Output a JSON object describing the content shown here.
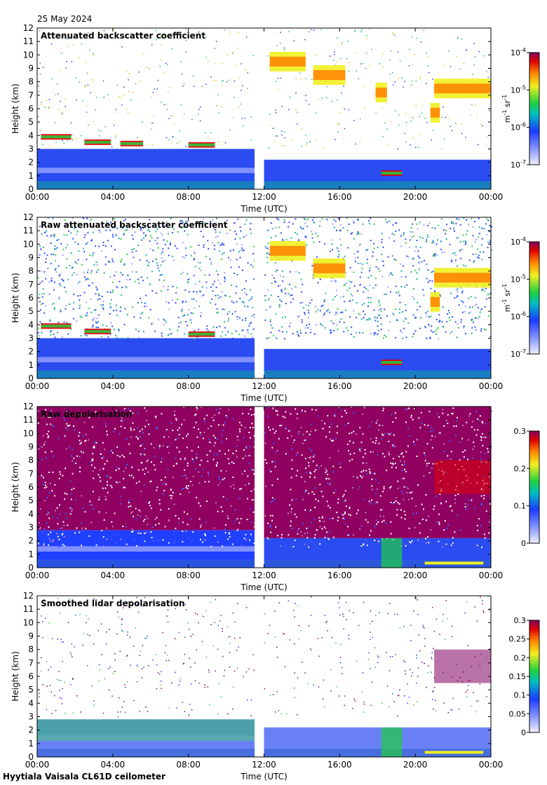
{
  "header": {
    "date": "25 May 2024",
    "instrument": "Hyytiala Vaisala CL61D ceilometer"
  },
  "chart_data": [
    {
      "type": "heatmap",
      "title": "Attenuated backscatter coefficient",
      "xlabel": "Time (UTC)",
      "ylabel": "Height (km)",
      "xticks": [
        "00:00",
        "04:00",
        "08:00",
        "12:00",
        "16:00",
        "20:00",
        "00:00"
      ],
      "xlim": [
        0,
        24
      ],
      "ylim": [
        0,
        12
      ],
      "yticks": [
        "0",
        "1",
        "2",
        "3",
        "4",
        "5",
        "6",
        "7",
        "8",
        "9",
        "10",
        "11",
        "12"
      ],
      "data_gap_hours": [
        11.5,
        12.0
      ],
      "colorbar": {
        "scale": "log",
        "ticks": [
          {
            "base": "10",
            "exp": "-4"
          },
          {
            "base": "10",
            "exp": "-5"
          },
          {
            "base": "10",
            "exp": "-6"
          },
          {
            "base": "10",
            "exp": "-7"
          }
        ],
        "unit": {
          "m": "m",
          "m_exp": "-1",
          "sr": "sr",
          "sr_exp": "-1"
        }
      },
      "cloud_layers": [
        {
          "start": 0.2,
          "end": 1.8,
          "height_km": 3.9
        },
        {
          "start": 2.5,
          "end": 3.9,
          "height_km": 3.5
        },
        {
          "start": 4.4,
          "end": 5.6,
          "height_km": 3.4
        },
        {
          "start": 8.0,
          "end": 9.4,
          "height_km": 3.3
        },
        {
          "start": 12.3,
          "end": 14.2,
          "height_km": 9.5
        },
        {
          "start": 14.6,
          "end": 16.3,
          "height_km": 8.5
        },
        {
          "start": 17.9,
          "end": 18.5,
          "height_km": 7.2
        },
        {
          "start": 18.2,
          "end": 19.3,
          "height_km": 1.2
        },
        {
          "start": 20.8,
          "end": 21.3,
          "height_km": 5.7
        },
        {
          "start": 21.0,
          "end": 24.0,
          "height_km": 7.5
        }
      ]
    },
    {
      "type": "heatmap",
      "title": "Raw attenuated backscatter coefficient",
      "xlabel": "Time (UTC)",
      "ylabel": "Height (km)",
      "xticks": [
        "00:00",
        "04:00",
        "08:00",
        "12:00",
        "16:00",
        "20:00",
        "00:00"
      ],
      "xlim": [
        0,
        24
      ],
      "ylim": [
        0,
        12
      ],
      "yticks": [
        "0",
        "1",
        "2",
        "3",
        "4",
        "5",
        "6",
        "7",
        "8",
        "9",
        "10",
        "11",
        "12"
      ],
      "data_gap_hours": [
        11.5,
        12.0
      ],
      "colorbar": {
        "scale": "log",
        "ticks": [
          {
            "base": "10",
            "exp": "-4"
          },
          {
            "base": "10",
            "exp": "-5"
          },
          {
            "base": "10",
            "exp": "-6"
          },
          {
            "base": "10",
            "exp": "-7"
          }
        ],
        "unit": {
          "m": "m",
          "m_exp": "-1",
          "sr": "sr",
          "sr_exp": "-1"
        }
      },
      "cloud_layers": [
        {
          "start": 0.2,
          "end": 1.8,
          "height_km": 3.9
        },
        {
          "start": 2.5,
          "end": 3.9,
          "height_km": 3.5
        },
        {
          "start": 8.0,
          "end": 9.4,
          "height_km": 3.3
        },
        {
          "start": 12.3,
          "end": 14.2,
          "height_km": 9.5
        },
        {
          "start": 14.6,
          "end": 16.3,
          "height_km": 8.2
        },
        {
          "start": 18.2,
          "end": 19.3,
          "height_km": 1.2
        },
        {
          "start": 20.8,
          "end": 21.3,
          "height_km": 5.7
        },
        {
          "start": 21.0,
          "end": 24.0,
          "height_km": 7.5
        }
      ]
    },
    {
      "type": "heatmap",
      "title": "Raw depolarisation",
      "xlabel": "Time (UTC)",
      "ylabel": "Height (km)",
      "xticks": [
        "00:00",
        "04:00",
        "08:00",
        "12:00",
        "16:00",
        "20:00",
        "00:00"
      ],
      "xlim": [
        0,
        24
      ],
      "ylim": [
        0,
        12
      ],
      "yticks": [
        "0",
        "1",
        "2",
        "3",
        "4",
        "5",
        "6",
        "7",
        "8",
        "9",
        "10",
        "11",
        "12"
      ],
      "data_gap_hours": [
        11.5,
        12.0
      ],
      "colorbar": {
        "scale": "linear",
        "ticks": [
          "0.3",
          "0.2",
          "0.1",
          "0"
        ]
      }
    },
    {
      "type": "heatmap",
      "title": "Smoothed lidar depolarisation",
      "xlabel": "Time (UTC)",
      "ylabel": "Height (km)",
      "xticks": [
        "00:00",
        "04:00",
        "08:00",
        "12:00",
        "16:00",
        "20:00",
        "00:00"
      ],
      "xlim": [
        0,
        24
      ],
      "ylim": [
        0,
        12
      ],
      "yticks": [
        "0",
        "1",
        "2",
        "3",
        "4",
        "5",
        "6",
        "7",
        "8",
        "9",
        "10",
        "11",
        "12"
      ],
      "data_gap_hours": [
        11.5,
        12.0
      ],
      "colorbar": {
        "scale": "linear",
        "ticks": [
          "0.3",
          "0.25",
          "0.2",
          "0.15",
          "0.1",
          "0.05",
          "0"
        ]
      }
    }
  ],
  "colors": {
    "low": "#f0f0ff",
    "blue": "#1a3cff",
    "green": "#20d040",
    "yellow": "#f0f020",
    "orange": "#ff8000",
    "red": "#e00000",
    "purple": "#800060"
  }
}
